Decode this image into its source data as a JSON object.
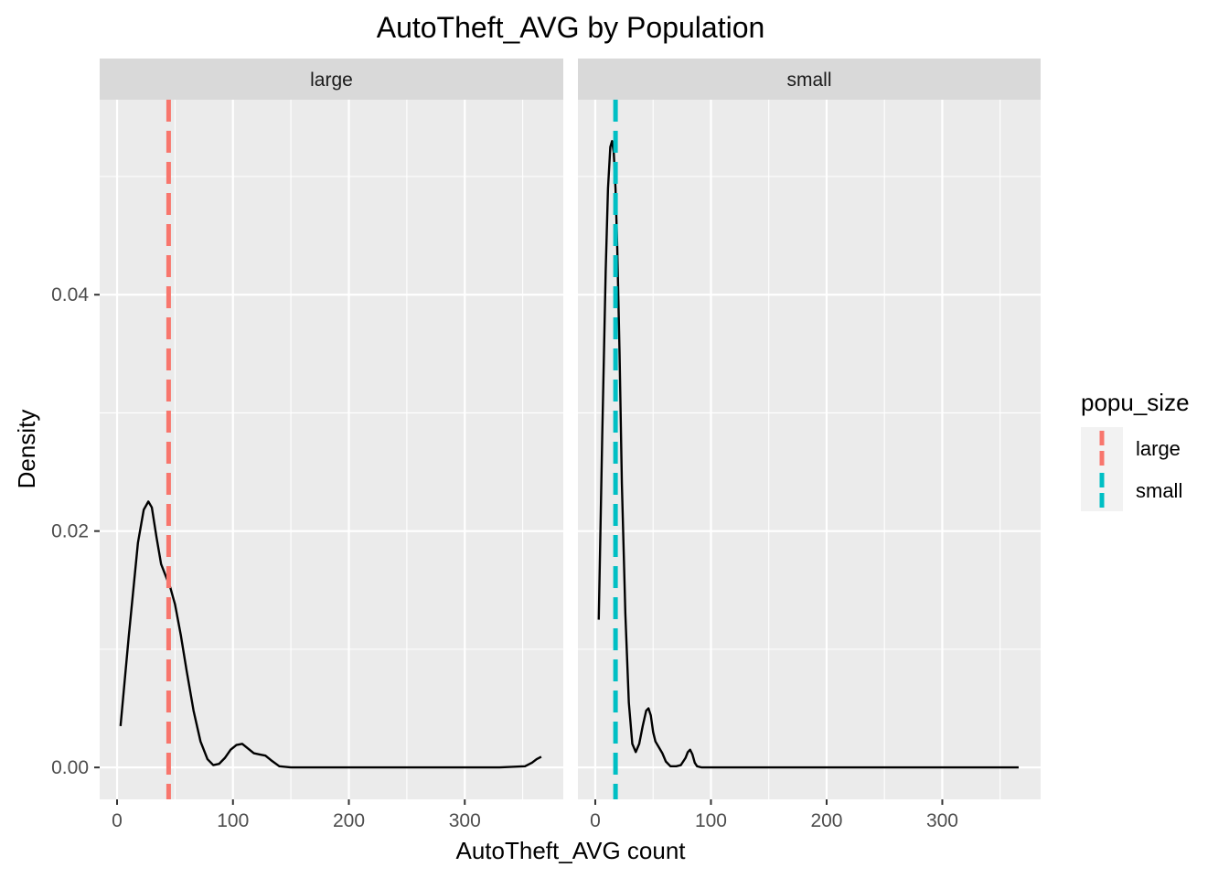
{
  "chart_data": {
    "type": "density",
    "title": "AutoTheft_AVG by Population",
    "xlabel": "AutoTheft_AVG count",
    "ylabel": "Density",
    "xlim": [
      -15,
      385
    ],
    "ylim": [
      -0.0027,
      0.0565
    ],
    "x_ticks": [
      0,
      100,
      200,
      300
    ],
    "x_tick_labels": [
      "0",
      "100",
      "200",
      "300"
    ],
    "y_ticks": [
      0.0,
      0.02,
      0.04
    ],
    "y_tick_labels": [
      "0.00",
      "0.02",
      "0.04"
    ],
    "grid": true,
    "legend": {
      "title": "popu_size",
      "position": "right",
      "entries": [
        {
          "label": "large",
          "color": "#F8766D"
        },
        {
          "label": "small",
          "color": "#00BFC4"
        }
      ]
    },
    "panels": [
      {
        "strip_label": "large",
        "mean_line": {
          "x": 44.5,
          "color": "#F8766D",
          "style": "dashed"
        },
        "density": {
          "x": [
            3,
            10,
            18,
            23,
            27,
            30,
            34,
            38,
            42,
            46,
            50,
            55,
            60,
            66,
            72,
            78,
            83,
            88,
            93,
            98,
            103,
            108,
            113,
            118,
            123,
            128,
            133,
            140,
            150,
            180,
            250,
            330,
            352,
            358,
            362,
            366
          ],
          "y": [
            0.0035,
            0.011,
            0.019,
            0.0218,
            0.0225,
            0.022,
            0.0195,
            0.0172,
            0.0162,
            0.0152,
            0.0138,
            0.0112,
            0.0082,
            0.0048,
            0.0022,
            0.0007,
            0.0002,
            0.0003,
            0.0008,
            0.0015,
            0.0019,
            0.002,
            0.0016,
            0.0012,
            0.0011,
            0.001,
            0.0006,
            0.0001,
            0.0,
            0.0,
            0.0,
            0.0,
            0.0001,
            0.0004,
            0.0007,
            0.0009
          ]
        }
      },
      {
        "strip_label": "small",
        "mean_line": {
          "x": 17.5,
          "color": "#00BFC4",
          "style": "dashed"
        },
        "density": {
          "x": [
            3,
            6,
            9,
            11,
            13,
            14.5,
            16,
            17.5,
            19,
            21,
            23,
            26,
            29,
            32,
            35,
            38,
            41,
            44,
            46,
            48,
            50,
            52,
            55,
            58,
            61,
            65,
            70,
            74,
            78,
            80,
            82,
            84,
            86,
            88,
            92,
            100,
            150,
            250,
            366
          ],
          "y": [
            0.0125,
            0.028,
            0.042,
            0.049,
            0.0525,
            0.053,
            0.052,
            0.049,
            0.044,
            0.035,
            0.024,
            0.013,
            0.0055,
            0.002,
            0.0013,
            0.002,
            0.0035,
            0.0048,
            0.005,
            0.0044,
            0.003,
            0.0022,
            0.0017,
            0.0012,
            0.0005,
            0.0001,
            0.0001,
            0.0002,
            0.0008,
            0.0013,
            0.0015,
            0.0011,
            0.0004,
            0.0001,
            0.0,
            0.0,
            0.0,
            0.0,
            0.0
          ]
        }
      }
    ]
  }
}
